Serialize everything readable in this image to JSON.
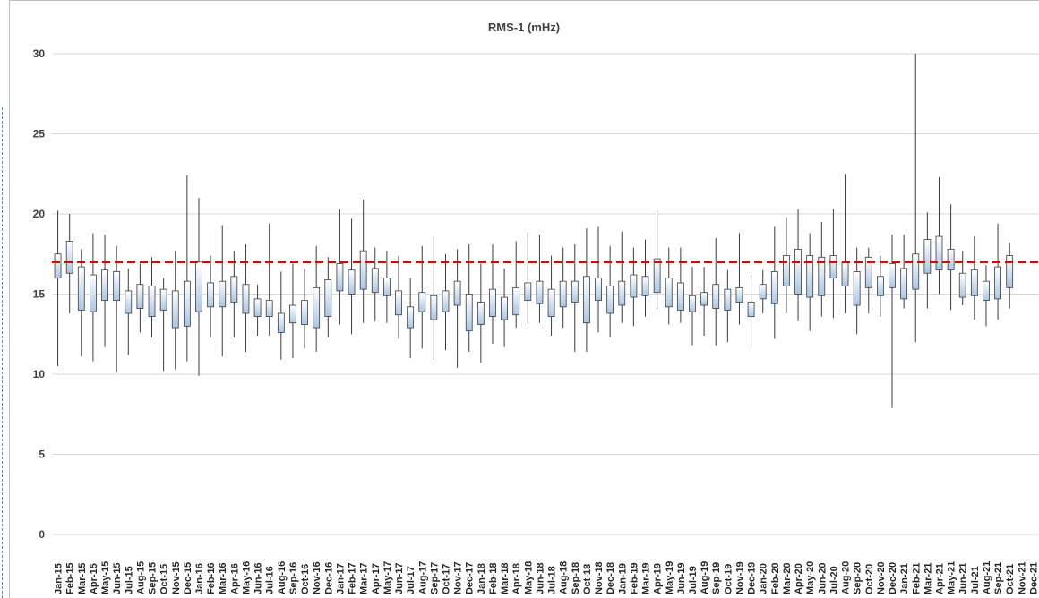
{
  "chart_data": {
    "type": "box",
    "title": "RMS-1 (mHz)",
    "xlabel": "",
    "ylabel": "",
    "ylim": [
      0,
      30
    ],
    "yticks": [
      0,
      5,
      10,
      15,
      20,
      25,
      30
    ],
    "grid": true,
    "reference_line": {
      "value": 17.0,
      "color": "#e00000",
      "style": "dashed"
    },
    "colors": {
      "box_top": "#ffffff",
      "box_bottom": "#a9c6e4",
      "box_stroke": "#3c3c3c",
      "whisker": "#3c3c3c",
      "grid": "#d9d9d9"
    },
    "categories": [
      "Jan-15",
      "Feb-15",
      "Mar-15",
      "Apr-15",
      "May-15",
      "Jun-15",
      "Jul-15",
      "Aug-15",
      "Sep-15",
      "Oct-15",
      "Nov-15",
      "Dec-15",
      "Jan-16",
      "Feb-16",
      "Mar-16",
      "Apr-16",
      "May-16",
      "Jun-16",
      "Jul-16",
      "Aug-16",
      "Sep-16",
      "Oct-16",
      "Nov-16",
      "Dec-16",
      "Jan-17",
      "Feb-17",
      "Mar-17",
      "Apr-17",
      "May-17",
      "Jun-17",
      "Jul-17",
      "Aug-17",
      "Sep-17",
      "Oct-17",
      "Nov-17",
      "Dec-17",
      "Jan-18",
      "Feb-18",
      "Mar-18",
      "Apr-18",
      "May-18",
      "Jun-18",
      "Jul-18",
      "Aug-18",
      "Sep-18",
      "Oct-18",
      "Nov-18",
      "Dec-18",
      "Jan-19",
      "Feb-19",
      "Mar-19",
      "Apr-19",
      "May-19",
      "Jun-19",
      "Jul-19",
      "Aug-19",
      "Sep-19",
      "Oct-19",
      "Nov-19",
      "Dec-19",
      "Jan-20",
      "Feb-20",
      "Mar-20",
      "Apr-20",
      "May-20",
      "Jun-20",
      "Jul-20",
      "Aug-20",
      "Sep-20",
      "Oct-20",
      "Nov-20",
      "Dec-20",
      "Jan-21",
      "Feb-21",
      "Mar-21",
      "Apr-21",
      "May-21",
      "Jun-21",
      "Jul-21",
      "Aug-21",
      "Sep-21",
      "Oct-21",
      "Nov-21",
      "Dec-21"
    ],
    "min": [
      10.5,
      13.8,
      11.1,
      10.8,
      11.7,
      10.1,
      11.2,
      12.6,
      12.3,
      10.2,
      10.3,
      10.8,
      9.9,
      12.3,
      11.1,
      12.3,
      11.4,
      12.4,
      12.4,
      10.9,
      11.0,
      11.6,
      11.4,
      12.3,
      13.1,
      12.5,
      13.2,
      13.3,
      13.2,
      12.2,
      11.0,
      11.6,
      10.9,
      11.5,
      10.4,
      11.4,
      10.7,
      11.9,
      11.7,
      12.9,
      13.2,
      13.2,
      12.4,
      12.9,
      11.4,
      11.4,
      12.6,
      12.3,
      13.2,
      13.0,
      13.6,
      14.1,
      13.1,
      13.2,
      11.8,
      12.4,
      11.8,
      12.0,
      13.1,
      11.6,
      13.8,
      12.2,
      13.8,
      13.3,
      12.7,
      13.6,
      13.5,
      13.8,
      12.5,
      13.8,
      13.6,
      7.9,
      14.1,
      12.0,
      14.1,
      15.0,
      14.0,
      14.3,
      13.4,
      13.0,
      13.4,
      14.1,
      null,
      null
    ],
    "q1": [
      16.0,
      16.3,
      14.0,
      13.9,
      14.6,
      14.6,
      13.8,
      14.1,
      13.6,
      14.0,
      12.9,
      13.0,
      13.9,
      14.2,
      14.2,
      14.5,
      13.8,
      13.6,
      13.6,
      12.6,
      13.2,
      13.1,
      12.9,
      13.6,
      15.2,
      15.0,
      15.3,
      15.1,
      14.9,
      13.7,
      12.9,
      13.9,
      13.4,
      13.9,
      14.3,
      12.7,
      13.1,
      13.6,
      13.4,
      13.7,
      14.6,
      14.4,
      13.6,
      14.2,
      14.5,
      13.2,
      14.6,
      13.8,
      14.3,
      14.8,
      14.9,
      15.1,
      14.2,
      14.0,
      13.9,
      14.3,
      14.1,
      14.0,
      14.5,
      13.6,
      14.7,
      14.4,
      15.5,
      15.0,
      14.8,
      14.9,
      16.0,
      15.5,
      14.3,
      15.4,
      14.9,
      15.4,
      14.7,
      15.3,
      16.3,
      16.5,
      16.5,
      14.8,
      14.9,
      14.6,
      14.7,
      15.4,
      null,
      null
    ],
    "q3": [
      17.5,
      18.3,
      16.7,
      16.2,
      16.5,
      16.4,
      15.2,
      15.6,
      15.5,
      15.3,
      15.2,
      15.8,
      17.0,
      15.7,
      15.8,
      16.1,
      15.6,
      14.7,
      14.6,
      13.8,
      14.3,
      14.6,
      15.4,
      15.9,
      16.9,
      16.5,
      17.7,
      16.6,
      16.0,
      15.2,
      14.2,
      15.1,
      14.9,
      15.2,
      15.8,
      15.0,
      14.5,
      15.3,
      14.8,
      15.4,
      15.7,
      15.8,
      15.3,
      15.8,
      15.8,
      16.1,
      16.0,
      15.5,
      15.8,
      16.2,
      16.1,
      17.2,
      16.0,
      15.7,
      14.9,
      15.1,
      15.6,
      15.3,
      15.4,
      14.5,
      15.6,
      16.4,
      17.4,
      17.8,
      17.4,
      17.3,
      17.4,
      17.0,
      16.4,
      17.3,
      16.1,
      16.9,
      16.6,
      17.5,
      18.4,
      18.6,
      17.8,
      16.3,
      16.5,
      15.8,
      16.7,
      17.4,
      null,
      null
    ],
    "max": [
      20.2,
      20.0,
      17.8,
      18.8,
      18.7,
      18.0,
      16.6,
      16.9,
      17.3,
      16.0,
      17.7,
      22.4,
      21.0,
      17.4,
      19.3,
      17.7,
      18.1,
      15.6,
      19.4,
      16.4,
      16.9,
      16.6,
      18.0,
      17.3,
      20.3,
      19.7,
      20.9,
      17.9,
      17.7,
      17.4,
      16.0,
      18.0,
      18.6,
      17.5,
      17.8,
      18.1,
      16.9,
      18.1,
      16.6,
      18.3,
      18.9,
      18.7,
      17.4,
      17.9,
      18.1,
      19.1,
      19.2,
      18.0,
      18.9,
      17.9,
      18.4,
      20.2,
      17.9,
      17.9,
      16.7,
      16.7,
      18.5,
      16.5,
      18.8,
      16.2,
      16.5,
      19.2,
      19.8,
      20.3,
      18.8,
      19.5,
      20.3,
      22.5,
      17.9,
      17.9,
      17.4,
      18.7,
      18.7,
      30.0,
      20.1,
      22.3,
      20.6,
      17.7,
      18.6,
      16.8,
      19.4,
      18.2,
      null,
      null
    ]
  }
}
